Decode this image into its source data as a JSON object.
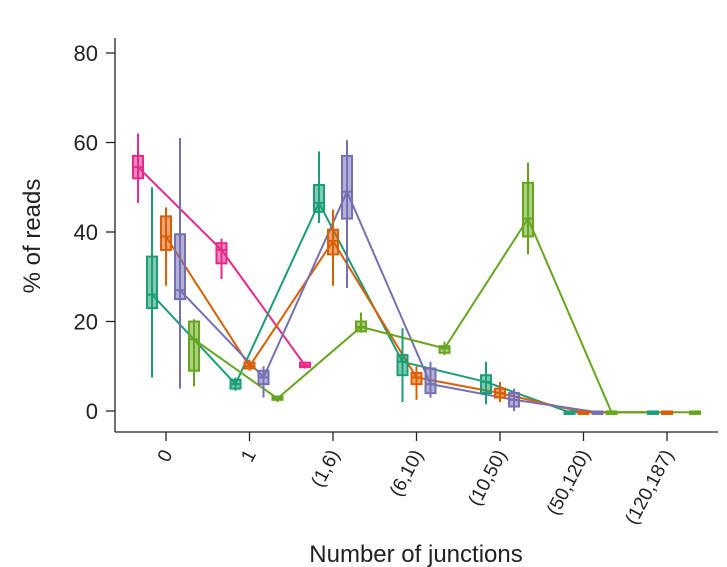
{
  "chart_data": {
    "type": "box",
    "xlabel": "Number of junctions",
    "ylabel": "% of reads",
    "ylim": [
      -4,
      84
    ],
    "yticks": [
      0,
      20,
      40,
      60,
      80
    ],
    "categories": [
      "0",
      "1",
      "(1,6)",
      "(6,10)",
      "(10,50)",
      "(50,120)",
      "(120,187)"
    ],
    "series": [
      {
        "color": "#e7298a",
        "offset": -2,
        "boxes": [
          {
            "min": 46.5,
            "q1": 52,
            "median": 54.5,
            "q3": 57,
            "max": 62
          },
          {
            "min": 29.5,
            "q1": 33,
            "median": 36,
            "q3": 37.5,
            "max": 38.5
          },
          {
            "min": 9.5,
            "q1": 9.8,
            "median": 10.2,
            "q3": 10.8,
            "max": 11
          }
        ]
      },
      {
        "color": "#1b9e77",
        "offset": -1,
        "boxes": [
          {
            "min": 7.5,
            "q1": 23,
            "median": 26,
            "q3": 34.5,
            "max": 50
          },
          {
            "min": 4.5,
            "q1": 5,
            "median": 6,
            "q3": 7,
            "max": 7.5
          },
          {
            "min": 42,
            "q1": 44.5,
            "median": 46.5,
            "q3": 50.5,
            "max": 58
          },
          {
            "min": 2,
            "q1": 8,
            "median": 11,
            "q3": 12.5,
            "max": 18.5
          },
          {
            "min": 1.5,
            "q1": 4,
            "median": 6.5,
            "q3": 8,
            "max": 11
          },
          {
            "min": -0.5,
            "q1": -0.4,
            "median": -0.3,
            "q3": -0.1,
            "max": 0
          },
          {
            "min": -0.5,
            "q1": -0.4,
            "median": -0.3,
            "q3": -0.1,
            "max": 0
          }
        ]
      },
      {
        "color": "#d95f02",
        "offset": 0,
        "boxes": [
          {
            "min": 28,
            "q1": 36,
            "median": 39,
            "q3": 43.5,
            "max": 45.5
          },
          {
            "min": 9,
            "q1": 9.5,
            "median": 10,
            "q3": 10.8,
            "max": 11.5
          },
          {
            "min": 28,
            "q1": 35,
            "median": 38,
            "q3": 40.5,
            "max": 45
          },
          {
            "min": 2.5,
            "q1": 6,
            "median": 7.5,
            "q3": 8.5,
            "max": 10
          },
          {
            "min": 2,
            "q1": 3,
            "median": 4,
            "q3": 5,
            "max": 6.5
          },
          {
            "min": -0.5,
            "q1": -0.4,
            "median": -0.3,
            "q3": -0.1,
            "max": 0
          },
          {
            "min": -0.5,
            "q1": -0.4,
            "median": -0.3,
            "q3": -0.1,
            "max": 0
          }
        ]
      },
      {
        "color": "#7570b3",
        "offset": 1,
        "boxes": [
          {
            "min": 5,
            "q1": 25,
            "median": 27,
            "q3": 39.5,
            "max": 61
          },
          {
            "min": 3,
            "q1": 6,
            "median": 7.5,
            "q3": 9,
            "max": 10
          },
          {
            "min": 27.5,
            "q1": 43,
            "median": 49,
            "q3": 57,
            "max": 60.5
          },
          {
            "min": 3,
            "q1": 4,
            "median": 6,
            "q3": 9.5,
            "max": 11
          },
          {
            "min": 0,
            "q1": 1,
            "median": 2.5,
            "q3": 4,
            "max": 5
          },
          {
            "min": -0.5,
            "q1": -0.4,
            "median": -0.3,
            "q3": -0.1,
            "max": 0
          }
        ]
      },
      {
        "color": "#66a61e",
        "offset": 2,
        "boxes": [
          {
            "min": 5.5,
            "q1": 9,
            "median": 16,
            "q3": 20,
            "max": 20.5
          },
          {
            "min": 2,
            "q1": 2.5,
            "median": 2.8,
            "q3": 3.2,
            "max": 3.5
          },
          {
            "min": 17.5,
            "q1": 17.8,
            "median": 18.8,
            "q3": 20,
            "max": 22
          },
          {
            "min": 12.5,
            "q1": 13,
            "median": 14,
            "q3": 14.5,
            "max": 15.5
          },
          {
            "min": 35,
            "q1": 39,
            "median": 43,
            "q3": 51,
            "max": 55.5
          },
          {
            "min": -0.5,
            "q1": -0.4,
            "median": -0.3,
            "q3": -0.1,
            "max": 0
          },
          {
            "min": -0.5,
            "q1": -0.4,
            "median": -0.3,
            "q3": -0.1,
            "max": 0
          }
        ]
      }
    ]
  }
}
